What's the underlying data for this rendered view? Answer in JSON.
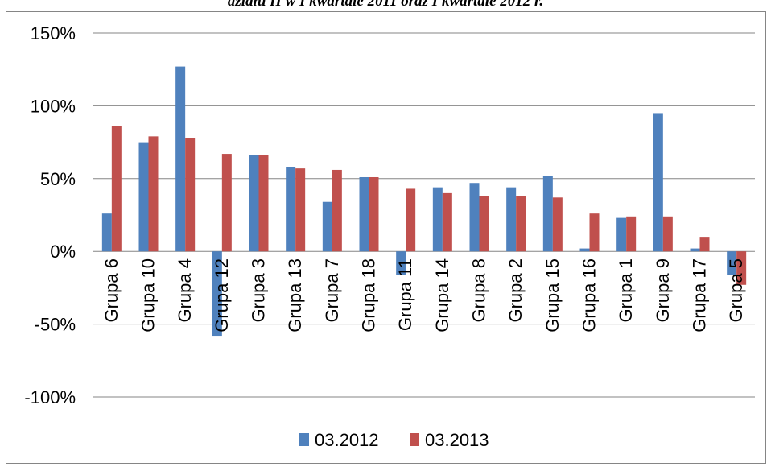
{
  "caption": "działu II w I kwartale 2011 oraz I kwartale 2012 r.",
  "chart_data": {
    "type": "bar",
    "categories": [
      "Grupa 6",
      "Grupa 10",
      "Grupa 4",
      "Grupa 12",
      "Grupa 3",
      "Grupa 13",
      "Grupa 7",
      "Grupa 18",
      "Grupa 11",
      "Grupa 14",
      "Grupa 8",
      "Grupa 2",
      "Grupa 15",
      "Grupa 16",
      "Grupa 1",
      "Grupa 9",
      "Grupa 17",
      "Grupa 5"
    ],
    "series": [
      {
        "name": "03.2012",
        "color": "#4F81BD",
        "values": [
          26,
          75,
          127,
          -58,
          66,
          58,
          34,
          51,
          -16,
          44,
          47,
          44,
          52,
          2,
          23,
          95,
          2,
          -16
        ]
      },
      {
        "name": "03.2013",
        "color": "#C0504D",
        "values": [
          86,
          79,
          78,
          67,
          66,
          57,
          56,
          51,
          43,
          40,
          38,
          38,
          37,
          26,
          24,
          24,
          10,
          -23
        ]
      }
    ],
    "ylim": [
      -100,
      150
    ],
    "yticks": [
      -100,
      -50,
      0,
      50,
      100,
      150
    ],
    "ytick_labels": [
      "-100%",
      "-50%",
      "0%",
      "50%",
      "100%",
      "150%"
    ],
    "grid": true,
    "legend_position": "bottom"
  }
}
